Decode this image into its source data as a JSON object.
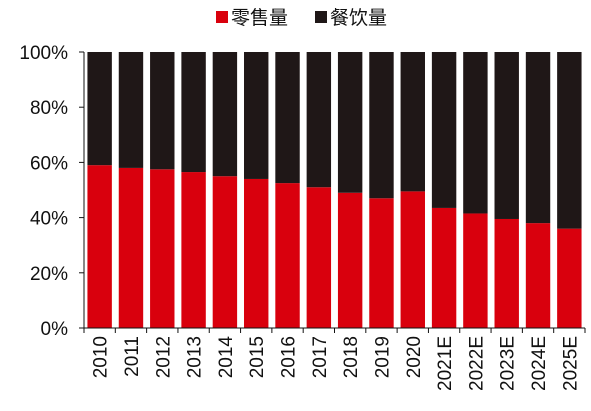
{
  "chart_data": {
    "type": "bar",
    "stacked": true,
    "categories": [
      "2010",
      "2011",
      "2012",
      "2013",
      "2014",
      "2015",
      "2016",
      "2017",
      "2018",
      "2019",
      "2020",
      "2021E",
      "2022E",
      "2023E",
      "2024E",
      "2025E"
    ],
    "series": [
      {
        "name": "零售量",
        "color": "#d9000d",
        "values": [
          59,
          58,
          57.5,
          56.5,
          55,
          54,
          52.5,
          51,
          49,
          47,
          49.5,
          43.5,
          41.5,
          39.5,
          38,
          36
        ]
      },
      {
        "name": "餐饮量",
        "color": "#1f1717",
        "values": [
          41,
          42,
          42.5,
          43.5,
          45,
          46,
          47.5,
          49,
          51,
          53,
          50.5,
          56.5,
          58.5,
          60.5,
          62,
          64
        ]
      }
    ],
    "y_ticks": [
      "0%",
      "20%",
      "40%",
      "60%",
      "80%",
      "100%"
    ],
    "ylim": [
      0,
      100
    ],
    "legend_position": "top-center",
    "grid": false
  }
}
